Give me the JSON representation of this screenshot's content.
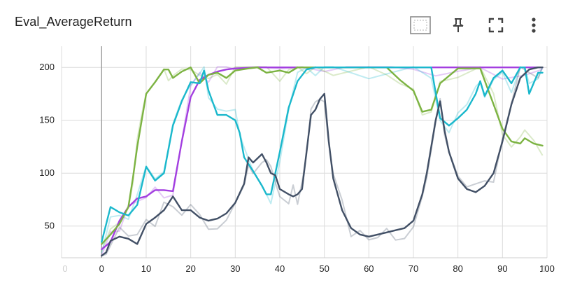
{
  "card": {
    "title": "Eval_AverageReturn"
  },
  "toolbar": {
    "icons": [
      "fit-domain-icon",
      "pin-icon",
      "fullscreen-icon",
      "more-vert-icon"
    ]
  },
  "colors": {
    "grid": "#dcdcdc",
    "axis": "#9e9e9e",
    "purple": "#a33fe0",
    "green": "#7cb342",
    "cyan": "#1ab8cc",
    "slate": "#425066"
  },
  "chart_data": {
    "type": "line",
    "title": "Eval_AverageReturn",
    "xlabel": "",
    "ylabel": "",
    "xlim": [
      -9,
      100
    ],
    "ylim": [
      20,
      220
    ],
    "x_ticks": [
      0,
      10,
      20,
      30,
      40,
      50,
      60,
      70,
      80,
      90,
      100
    ],
    "x_tick_labels": [
      "0",
      "10",
      "20",
      "30",
      "40",
      "50",
      "60",
      "70",
      "80",
      "90",
      "100"
    ],
    "x_faint_tick_labels": [
      "0",
      "1"
    ],
    "y_ticks": [
      50,
      100,
      150,
      200
    ],
    "y_tick_labels": [
      "50",
      "100",
      "150",
      "200"
    ],
    "grid": true,
    "legend": "none",
    "series": [
      {
        "color": "#a33fe0",
        "x": [
          0,
          2,
          4,
          6,
          8,
          10,
          12,
          14,
          16,
          18,
          20,
          22,
          24,
          26,
          28,
          30,
          35,
          40,
          45,
          50,
          55,
          60,
          65,
          70,
          75,
          80,
          85,
          90,
          95,
          99
        ],
        "y": [
          28,
          35,
          55,
          68,
          76,
          78,
          84,
          84,
          83,
          130,
          172,
          188,
          193,
          196,
          198,
          199,
          200,
          200,
          200,
          200,
          200,
          200,
          200,
          200,
          200,
          200,
          200,
          200,
          200,
          200
        ]
      },
      {
        "color": "#7cb342",
        "x": [
          0,
          2,
          4,
          6,
          7,
          8,
          9,
          10,
          12,
          14,
          15,
          16,
          18,
          20,
          22,
          24,
          26,
          28,
          30,
          33,
          35,
          37,
          40,
          42,
          44,
          46,
          48,
          52,
          60,
          64,
          67,
          70,
          72,
          74,
          76,
          80,
          85,
          88,
          90,
          92,
          94,
          95,
          97,
          99
        ],
        "y": [
          33,
          42,
          52,
          68,
          95,
          125,
          150,
          175,
          186,
          198,
          198,
          190,
          196,
          200,
          185,
          193,
          195,
          190,
          197,
          199,
          200,
          195,
          197,
          195,
          200,
          200,
          200,
          200,
          200,
          200,
          188,
          178,
          158,
          160,
          185,
          199,
          199,
          165,
          142,
          130,
          128,
          133,
          128,
          126
        ]
      },
      {
        "color": "#1ab8cc",
        "x": [
          0,
          2,
          4,
          6,
          8,
          10,
          12,
          14,
          16,
          18,
          20,
          22,
          23,
          24,
          26,
          28,
          30,
          31,
          32,
          34,
          36,
          37,
          38,
          40,
          42,
          44,
          46,
          48,
          50,
          52,
          60,
          70,
          74,
          76,
          78,
          80,
          82,
          84,
          85,
          86,
          88,
          90,
          92,
          94,
          95,
          96,
          98,
          99
        ],
        "y": [
          35,
          68,
          63,
          60,
          70,
          106,
          93,
          100,
          145,
          168,
          186,
          185,
          197,
          178,
          155,
          155,
          150,
          138,
          115,
          102,
          88,
          80,
          80,
          120,
          162,
          187,
          198,
          200,
          200,
          200,
          200,
          200,
          200,
          152,
          145,
          152,
          160,
          175,
          187,
          173,
          190,
          197,
          185,
          200,
          200,
          175,
          195,
          195
        ]
      },
      {
        "color": "#425066",
        "x": [
          0,
          1,
          2,
          4,
          6,
          8,
          10,
          12,
          14,
          16,
          18,
          20,
          22,
          24,
          26,
          28,
          30,
          32,
          33,
          34,
          36,
          37,
          38,
          39,
          40,
          42,
          43,
          44,
          45,
          46,
          47,
          48,
          49,
          50,
          51,
          52,
          54,
          56,
          58,
          60,
          62,
          64,
          66,
          68,
          70,
          72,
          73,
          74,
          75,
          76,
          77,
          78,
          80,
          82,
          84,
          86,
          88,
          90,
          92,
          94,
          96,
          98,
          99
        ],
        "y": [
          22,
          25,
          36,
          40,
          38,
          33,
          52,
          58,
          65,
          78,
          65,
          65,
          58,
          55,
          57,
          62,
          72,
          90,
          115,
          110,
          118,
          110,
          100,
          98,
          85,
          80,
          78,
          80,
          85,
          120,
          155,
          160,
          170,
          175,
          130,
          95,
          65,
          48,
          42,
          40,
          42,
          44,
          46,
          48,
          55,
          80,
          100,
          125,
          150,
          168,
          140,
          120,
          95,
          85,
          82,
          88,
          100,
          130,
          165,
          190,
          198,
          200,
          200
        ]
      }
    ]
  }
}
